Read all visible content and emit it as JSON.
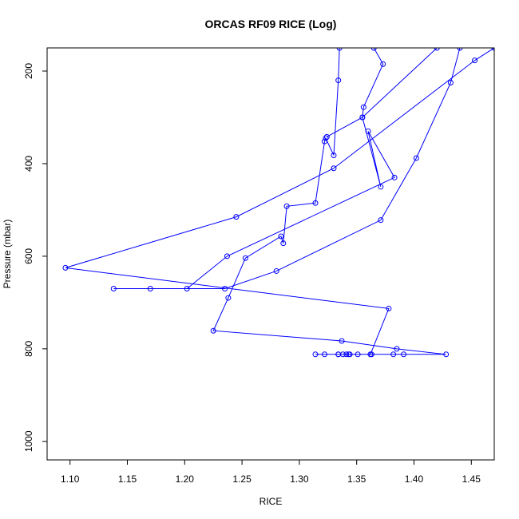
{
  "chart_data": {
    "type": "line",
    "title": "ORCAS RF09 RICE (Log)",
    "xlabel": "RICE",
    "ylabel": "Pressure (mbar)",
    "xlim": [
      1.08,
      1.47
    ],
    "ylim": [
      1040,
      150
    ],
    "y_axis_inverted": true,
    "xticks": [
      1.1,
      1.15,
      1.2,
      1.25,
      1.3,
      1.35,
      1.4,
      1.45
    ],
    "xtick_labels": [
      "1.10",
      "1.15",
      "1.20",
      "1.25",
      "1.30",
      "1.35",
      "1.40",
      "1.45"
    ],
    "yticks": [
      200,
      400,
      600,
      800,
      1000
    ],
    "ytick_labels": [
      "200",
      "400",
      "600",
      "800",
      "1000"
    ],
    "grid": false,
    "color": "#0000ff",
    "series": [
      {
        "marker": "open-circle",
        "x": [
          1.335,
          1.334,
          1.33,
          1.323,
          1.322,
          1.314,
          1.289,
          1.286,
          1.284,
          1.253,
          1.238,
          1.225,
          1.337,
          1.385,
          1.428,
          1.391,
          1.382,
          1.363,
          1.351,
          1.344,
          1.341,
          1.338,
          1.334,
          1.322,
          1.314,
          1.334,
          1.343,
          1.362,
          1.378,
          1.096,
          1.245,
          1.33,
          1.453,
          1.47
        ],
        "y": [
          150,
          220,
          382,
          345,
          352,
          485,
          492,
          572,
          557,
          604,
          690,
          761,
          783,
          800,
          812,
          812,
          812,
          812,
          812,
          812,
          812,
          812,
          812,
          812,
          812,
          812,
          812,
          812,
          713,
          625,
          515,
          410,
          177,
          150
        ]
      },
      {
        "marker": "open-circle",
        "x": [
          1.365,
          1.373,
          1.356,
          1.355,
          1.371,
          1.36,
          1.383,
          1.237,
          1.202,
          1.17,
          1.138,
          1.235,
          1.28,
          1.371,
          1.402,
          1.432,
          1.44
        ],
        "y": [
          150,
          185,
          278,
          300,
          450,
          330,
          430,
          600,
          670,
          670,
          670,
          670,
          632,
          522,
          388,
          225,
          150
        ]
      },
      {
        "marker": "open-circle",
        "x": [
          1.42,
          1.355,
          1.324
        ],
        "y": [
          150,
          300,
          342
        ]
      }
    ]
  }
}
